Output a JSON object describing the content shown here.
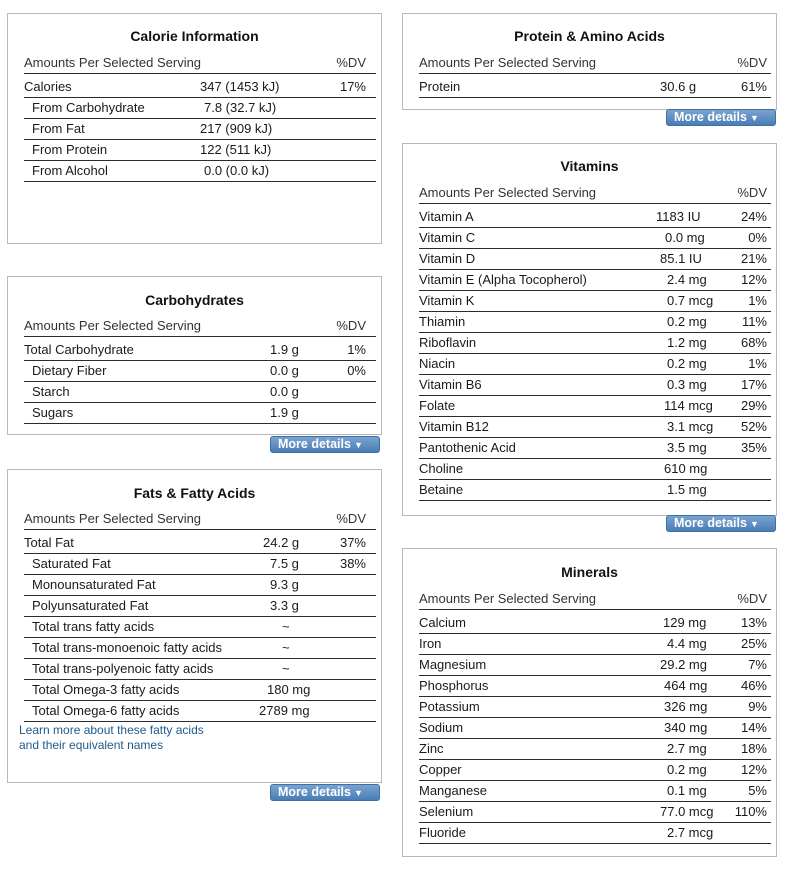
{
  "more_details_label": "More details",
  "calorie": {
    "title": "Calorie Information",
    "header": {
      "label": "Amounts Per Selected Serving",
      "dv": "%DV"
    },
    "rows": [
      {
        "label": "Calories",
        "amount": "347 (1453 kJ)",
        "dv": "17%"
      },
      {
        "label": "From Carbohydrate",
        "amount": "7.8 (32.7 kJ)",
        "dv": ""
      },
      {
        "label": "From Fat",
        "amount": "217 (909 kJ)",
        "dv": ""
      },
      {
        "label": "From Protein",
        "amount": "122 (511 kJ)",
        "dv": ""
      },
      {
        "label": "From Alcohol",
        "amount": "0.0 (0.0 kJ)",
        "dv": ""
      }
    ]
  },
  "carbs": {
    "title": "Carbohydrates",
    "header": {
      "label": "Amounts Per Selected Serving",
      "dv": "%DV"
    },
    "rows": [
      {
        "label": "Total Carbohydrate",
        "amount": "1.9 g",
        "dv": "1%"
      },
      {
        "label": "Dietary Fiber",
        "amount": "0.0 g",
        "dv": "0%"
      },
      {
        "label": "Starch",
        "amount": "0.0 g",
        "dv": ""
      },
      {
        "label": "Sugars",
        "amount": "1.9 g",
        "dv": ""
      }
    ]
  },
  "fats": {
    "title": "Fats & Fatty Acids",
    "header": {
      "label": "Amounts Per Selected Serving",
      "dv": "%DV"
    },
    "rows": [
      {
        "label": "Total Fat",
        "amount": "24.2 g",
        "dv": "37%"
      },
      {
        "label": "Saturated Fat",
        "amount": "7.5 g",
        "dv": "38%"
      },
      {
        "label": "Monounsaturated Fat",
        "amount": "9.3 g",
        "dv": ""
      },
      {
        "label": "Polyunsaturated Fat",
        "amount": "3.3 g",
        "dv": ""
      },
      {
        "label": "Total trans fatty acids",
        "amount": "~",
        "dv": ""
      },
      {
        "label": "Total trans-monoenoic fatty acids",
        "amount": "~",
        "dv": ""
      },
      {
        "label": "Total trans-polyenoic fatty acids",
        "amount": "~",
        "dv": ""
      },
      {
        "label": "Total Omega-3 fatty acids",
        "amount": "180 mg",
        "dv": ""
      },
      {
        "label": "Total Omega-6 fatty acids",
        "amount": "2789 mg",
        "dv": ""
      }
    ],
    "link_line1": "Learn more about these fatty acids",
    "link_line2": "and their equivalent names"
  },
  "protein": {
    "title": "Protein & Amino Acids",
    "header": {
      "label": "Amounts Per Selected Serving",
      "dv": "%DV"
    },
    "rows": [
      {
        "label": "Protein",
        "amount": "30.6 g",
        "dv": "61%"
      }
    ]
  },
  "vitamins": {
    "title": "Vitamins",
    "header": {
      "label": "Amounts Per Selected Serving",
      "dv": "%DV"
    },
    "rows": [
      {
        "label": "Vitamin A",
        "amount": "1183 IU",
        "dv": "24%"
      },
      {
        "label": "Vitamin C",
        "amount": "0.0 mg",
        "dv": "0%"
      },
      {
        "label": "Vitamin D",
        "amount": "85.1 IU",
        "dv": "21%"
      },
      {
        "label": "Vitamin E (Alpha Tocopherol)",
        "amount": "2.4 mg",
        "dv": "12%"
      },
      {
        "label": "Vitamin K",
        "amount": "0.7 mcg",
        "dv": "1%"
      },
      {
        "label": "Thiamin",
        "amount": "0.2 mg",
        "dv": "11%"
      },
      {
        "label": "Riboflavin",
        "amount": "1.2 mg",
        "dv": "68%"
      },
      {
        "label": "Niacin",
        "amount": "0.2 mg",
        "dv": "1%"
      },
      {
        "label": "Vitamin B6",
        "amount": "0.3 mg",
        "dv": "17%"
      },
      {
        "label": "Folate",
        "amount": "114 mcg",
        "dv": "29%"
      },
      {
        "label": "Vitamin B12",
        "amount": "3.1 mcg",
        "dv": "52%"
      },
      {
        "label": "Pantothenic Acid",
        "amount": "3.5 mg",
        "dv": "35%"
      },
      {
        "label": "Choline",
        "amount": "610 mg",
        "dv": ""
      },
      {
        "label": "Betaine",
        "amount": "1.5 mg",
        "dv": ""
      }
    ]
  },
  "minerals": {
    "title": "Minerals",
    "header": {
      "label": "Amounts Per Selected Serving",
      "dv": "%DV"
    },
    "rows": [
      {
        "label": "Calcium",
        "amount": "129 mg",
        "dv": "13%"
      },
      {
        "label": "Iron",
        "amount": "4.4 mg",
        "dv": "25%"
      },
      {
        "label": "Magnesium",
        "amount": "29.2 mg",
        "dv": "7%"
      },
      {
        "label": "Phosphorus",
        "amount": "464 mg",
        "dv": "46%"
      },
      {
        "label": "Potassium",
        "amount": "326 mg",
        "dv": "9%"
      },
      {
        "label": "Sodium",
        "amount": "340 mg",
        "dv": "14%"
      },
      {
        "label": "Zinc",
        "amount": "2.7 mg",
        "dv": "18%"
      },
      {
        "label": "Copper",
        "amount": "0.2 mg",
        "dv": "12%"
      },
      {
        "label": "Manganese",
        "amount": "0.1 mg",
        "dv": "5%"
      },
      {
        "label": "Selenium",
        "amount": "77.0 mcg",
        "dv": "110%"
      },
      {
        "label": "Fluoride",
        "amount": "2.7 mcg",
        "dv": ""
      }
    ]
  }
}
